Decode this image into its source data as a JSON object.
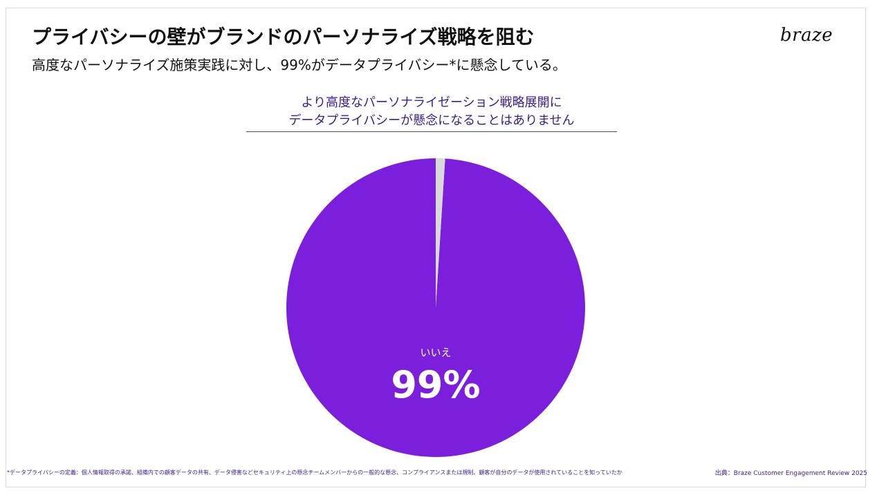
{
  "header": {
    "title": "プライバシーの壁がブランドのパーソナライズ戦略を阻む",
    "subtitle": "高度なパーソナライズ施策実践に対し、99%がデータプライバシー*に懸念している。",
    "logo_text": "braze"
  },
  "chart_data": {
    "type": "pie",
    "title_lines": [
      "より高度なパーソナライゼーション戦略展開に",
      "データプライバシーが懸念になることはありません"
    ],
    "slices": [
      {
        "label": "いいえ",
        "value": 99,
        "display": "99%",
        "color": "#7b1fdc"
      },
      {
        "label": "",
        "value": 1,
        "display": "",
        "color": "#d9d9d9"
      }
    ],
    "start_angle_deg": 0,
    "direction": "counterclockwise"
  },
  "footer": {
    "footnote": "*データプライバシーの定義：個人情報取得の承諾、組織内での顧客データの共有、データ侵害などセキュリティ上の懸念チームメンバーからの一般的な懸念、コンプライアンスまたは規制、顧客が自分のデータが使用されていることを知っていたか",
    "source": "出典：Braze Customer Engagement Review 2025"
  },
  "colors": {
    "accent": "#7b1fdc",
    "text_purple": "#3b1d8f",
    "minor_slice": "#d9d9d9"
  }
}
